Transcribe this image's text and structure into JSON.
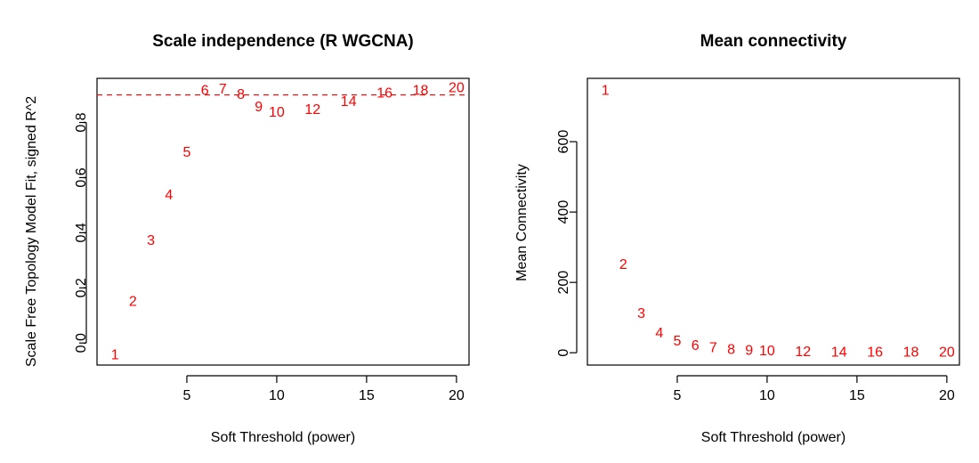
{
  "chart_data": [
    {
      "type": "scatter",
      "title": "Scale independence (R WGCNA)",
      "xlabel": "Soft Threshold (power)",
      "ylabel": "Scale Free Topology Model Fit, signed R^2",
      "xlim": [
        0,
        20.7
      ],
      "ylim": [
        -0.08,
        0.96
      ],
      "x_ticks": [
        5,
        10,
        15,
        20
      ],
      "y_ticks": [
        0.0,
        0.2,
        0.4,
        0.6,
        0.8
      ],
      "y_tick_labels": [
        "0.0",
        "0.2",
        "0.4",
        "0.6",
        "0.8"
      ],
      "grid": false,
      "point_color": "#ff0000",
      "reference_line": {
        "y": 0.9,
        "style": "dashed",
        "color": "#ff0000"
      },
      "points": [
        {
          "label": "1",
          "x": 1,
          "y": -0.045
        },
        {
          "label": "2",
          "x": 2,
          "y": 0.15
        },
        {
          "label": "3",
          "x": 3,
          "y": 0.37
        },
        {
          "label": "4",
          "x": 4,
          "y": 0.535
        },
        {
          "label": "5",
          "x": 5,
          "y": 0.69
        },
        {
          "label": "6",
          "x": 6,
          "y": 0.915
        },
        {
          "label": "7",
          "x": 7,
          "y": 0.92
        },
        {
          "label": "8",
          "x": 8,
          "y": 0.9
        },
        {
          "label": "9",
          "x": 9,
          "y": 0.855
        },
        {
          "label": "10",
          "x": 10,
          "y": 0.835
        },
        {
          "label": "12",
          "x": 12,
          "y": 0.845
        },
        {
          "label": "14",
          "x": 14,
          "y": 0.875
        },
        {
          "label": "16",
          "x": 16,
          "y": 0.905
        },
        {
          "label": "18",
          "x": 18,
          "y": 0.915
        },
        {
          "label": "20",
          "x": 20,
          "y": 0.925
        }
      ]
    },
    {
      "type": "scatter",
      "title": "Mean connectivity",
      "xlabel": "Soft Threshold (power)",
      "ylabel": "Mean Connectivity",
      "xlim": [
        0,
        20.7
      ],
      "ylim": [
        -35,
        780
      ],
      "x_ticks": [
        5,
        10,
        15,
        20
      ],
      "y_ticks": [
        0,
        200,
        400,
        600
      ],
      "y_tick_labels": [
        "0",
        "200",
        "400",
        "600"
      ],
      "grid": false,
      "point_color": "#ff0000",
      "points": [
        {
          "label": "1",
          "x": 1,
          "y": 745
        },
        {
          "label": "2",
          "x": 2,
          "y": 250
        },
        {
          "label": "3",
          "x": 3,
          "y": 110
        },
        {
          "label": "4",
          "x": 4,
          "y": 55
        },
        {
          "label": "5",
          "x": 5,
          "y": 32
        },
        {
          "label": "6",
          "x": 6,
          "y": 20
        },
        {
          "label": "7",
          "x": 7,
          "y": 13
        },
        {
          "label": "8",
          "x": 8,
          "y": 8
        },
        {
          "label": "9",
          "x": 9,
          "y": 5
        },
        {
          "label": "10",
          "x": 10,
          "y": 4
        },
        {
          "label": "12",
          "x": 12,
          "y": 2
        },
        {
          "label": "14",
          "x": 14,
          "y": 1
        },
        {
          "label": "16",
          "x": 16,
          "y": 0.6
        },
        {
          "label": "18",
          "x": 18,
          "y": 0.4
        },
        {
          "label": "20",
          "x": 20,
          "y": 0.3
        }
      ]
    }
  ]
}
